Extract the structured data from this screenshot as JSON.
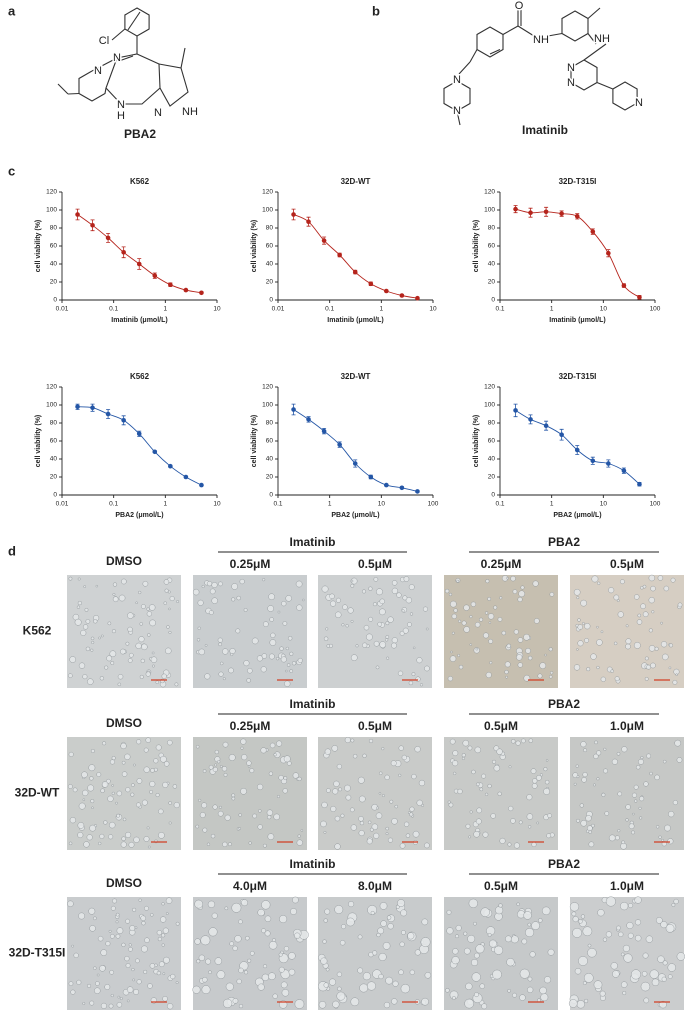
{
  "panel_labels": [
    "a",
    "b",
    "c",
    "d"
  ],
  "structures": [
    {
      "caption": "PBA2",
      "atoms": [
        "Cl",
        "N",
        "N",
        "N",
        "NH",
        "N",
        "H"
      ]
    },
    {
      "caption": "Imatinib",
      "atoms": [
        "O",
        "NH",
        "NH",
        "N",
        "N",
        "N",
        "N",
        "N"
      ]
    }
  ],
  "chart_data": [
    {
      "type": "scatter",
      "title": "K562",
      "x_label": "Imatinib (μmol/L)",
      "y_label": "cell viability (%)",
      "color": "#b5241c",
      "xscale": "log",
      "x": [
        0.02,
        0.039,
        0.078,
        0.156,
        0.3125,
        0.625,
        1.25,
        2.5,
        5
      ],
      "values": [
        95,
        83,
        69,
        53,
        40,
        27,
        17,
        11,
        8
      ],
      "errors": [
        6,
        6,
        5,
        6,
        6,
        3,
        2,
        1,
        1
      ],
      "xlim": [
        0.01,
        10
      ],
      "xticks": [
        0.01,
        0.1,
        1,
        10
      ],
      "ylim": [
        0,
        120
      ],
      "yticks": [
        0,
        20,
        40,
        60,
        80,
        100,
        120
      ]
    },
    {
      "type": "scatter",
      "title": "32D-WT",
      "x_label": "Imatinib (μmol/L)",
      "y_label": "cell viability (%)",
      "color": "#b5241c",
      "xscale": "log",
      "x": [
        0.02,
        0.039,
        0.078,
        0.156,
        0.3125,
        0.625,
        1.25,
        2.5,
        5
      ],
      "values": [
        95,
        87,
        66,
        50,
        31,
        18,
        10,
        5,
        2
      ],
      "errors": [
        6,
        5,
        4,
        2,
        2,
        2,
        1,
        1,
        1
      ],
      "xlim": [
        0.01,
        10
      ],
      "xticks": [
        0.01,
        0.1,
        1,
        10
      ],
      "ylim": [
        0,
        120
      ],
      "yticks": [
        0,
        20,
        40,
        60,
        80,
        100,
        120
      ]
    },
    {
      "type": "scatter",
      "title": "32D-T315I",
      "x_label": "Imatinib (μmol/L)",
      "y_label": "cell viability (%)",
      "color": "#b5241c",
      "xscale": "log",
      "x": [
        0.2,
        0.39,
        0.78,
        1.56,
        3.125,
        6.25,
        12.5,
        25,
        50
      ],
      "values": [
        101,
        97,
        98,
        96,
        93,
        76,
        52,
        16,
        3
      ],
      "errors": [
        4,
        5,
        5,
        3,
        3,
        3,
        4,
        2,
        2
      ],
      "xlim": [
        0.1,
        100
      ],
      "xticks": [
        0.1,
        1,
        10,
        100
      ],
      "ylim": [
        0,
        120
      ],
      "yticks": [
        0,
        20,
        40,
        60,
        80,
        100,
        120
      ]
    },
    {
      "type": "scatter",
      "title": "K562",
      "x_label": "PBA2 (μmol/L)",
      "y_label": "cell viability (%)",
      "color": "#2456a6",
      "xscale": "log",
      "x": [
        0.02,
        0.039,
        0.078,
        0.156,
        0.3125,
        0.625,
        1.25,
        2.5,
        5
      ],
      "values": [
        98,
        97,
        90,
        83,
        68,
        48,
        32,
        20,
        11
      ],
      "errors": [
        3,
        4,
        5,
        5,
        3,
        1,
        1,
        1,
        1
      ],
      "xlim": [
        0.01,
        10
      ],
      "xticks": [
        0.01,
        0.1,
        1,
        10
      ],
      "ylim": [
        0,
        120
      ],
      "yticks": [
        0,
        20,
        40,
        60,
        80,
        100,
        120
      ]
    },
    {
      "type": "scatter",
      "title": "32D-WT",
      "x_label": "PBA2 (μmol/L)",
      "y_label": "cell viability (%)",
      "color": "#2456a6",
      "xscale": "log",
      "x": [
        0.2,
        0.39,
        0.78,
        1.56,
        3.125,
        6.25,
        12.5,
        25,
        50
      ],
      "values": [
        95,
        84,
        71,
        56,
        35,
        20,
        11,
        8,
        4
      ],
      "errors": [
        6,
        3,
        3,
        3,
        4,
        2,
        1,
        1,
        1
      ],
      "xlim": [
        0.1,
        100
      ],
      "xticks": [
        0.1,
        1,
        10,
        100
      ],
      "ylim": [
        0,
        120
      ],
      "yticks": [
        0,
        20,
        40,
        60,
        80,
        100,
        120
      ]
    },
    {
      "type": "scatter",
      "title": "32D-T315I",
      "x_label": "PBA2 (μmol/L)",
      "y_label": "cell viability (%)",
      "color": "#2456a6",
      "xscale": "log",
      "x": [
        0.2,
        0.39,
        0.78,
        1.56,
        3.125,
        6.25,
        12.5,
        25,
        50
      ],
      "values": [
        94,
        84,
        77,
        67,
        50,
        38,
        35,
        27,
        12
      ],
      "errors": [
        7,
        5,
        5,
        6,
        5,
        4,
        4,
        3,
        2
      ],
      "xlim": [
        0.1,
        100
      ],
      "xticks": [
        0.1,
        1,
        10,
        100
      ],
      "ylim": [
        0,
        120
      ],
      "yticks": [
        0,
        20,
        40,
        60,
        80,
        100,
        120
      ]
    }
  ],
  "micrographs": {
    "rows": [
      {
        "label": "K562",
        "groups": [
          "Imatinib",
          "PBA2"
        ],
        "columns": [
          "DMSO",
          "0.25μM",
          "0.5μM",
          "0.25μM",
          "0.5μM"
        ]
      },
      {
        "label": "32D-WT",
        "groups": [
          "Imatinib",
          "PBA2"
        ],
        "columns": [
          "DMSO",
          "0.25μM",
          "0.5μM",
          "0.5μM",
          "1.0μM"
        ]
      },
      {
        "label": "32D-T315I",
        "groups": [
          "Imatinib",
          "PBA2"
        ],
        "columns": [
          "DMSO",
          "4.0μM",
          "8.0μM",
          "0.5μM",
          "1.0μM"
        ]
      }
    ]
  }
}
